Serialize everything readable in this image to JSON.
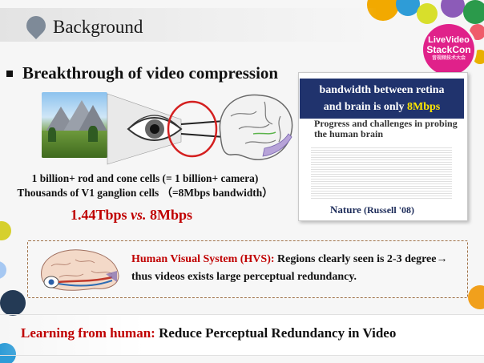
{
  "header": {
    "title": "Background"
  },
  "logo": {
    "line1": "LiveVideo",
    "line2": "StackCon",
    "line3": "音视频技术大会"
  },
  "bullet": {
    "text": "Breakthrough of video compression"
  },
  "cells": {
    "line1": "1 billion+ rod and cone cells (= 1 billion+ camera)",
    "line2": "Thousands of V1 ganglion cells （=8Mbps bandwidth）"
  },
  "ratio": {
    "left": "1.44Tbps",
    "vs": "vs.",
    "right": "8Mbps"
  },
  "nature": {
    "header_line1": "bandwidth between retina",
    "header_line2_prefix": "and brain is only ",
    "header_highlight": "8Mbps",
    "paper_title_line1": "Progress and challenges in probing",
    "paper_title_line2": "the human brain",
    "caption_main": "Nature ",
    "caption_ref": "(Russell '08)"
  },
  "hvs": {
    "label": "Human Visual System (HVS):",
    "text": " Regions clearly seen is 2-3 degree→ thus videos exists large perceptual redundancy."
  },
  "learning": {
    "label": "Learning from human:",
    "text": " Reduce Perceptual Redundancy in Video"
  },
  "colors": {
    "accent_red": "#c00000",
    "nature_blue": "#20336d",
    "highlight_yellow": "#ffe600",
    "logo_pink": "#e0218a"
  }
}
